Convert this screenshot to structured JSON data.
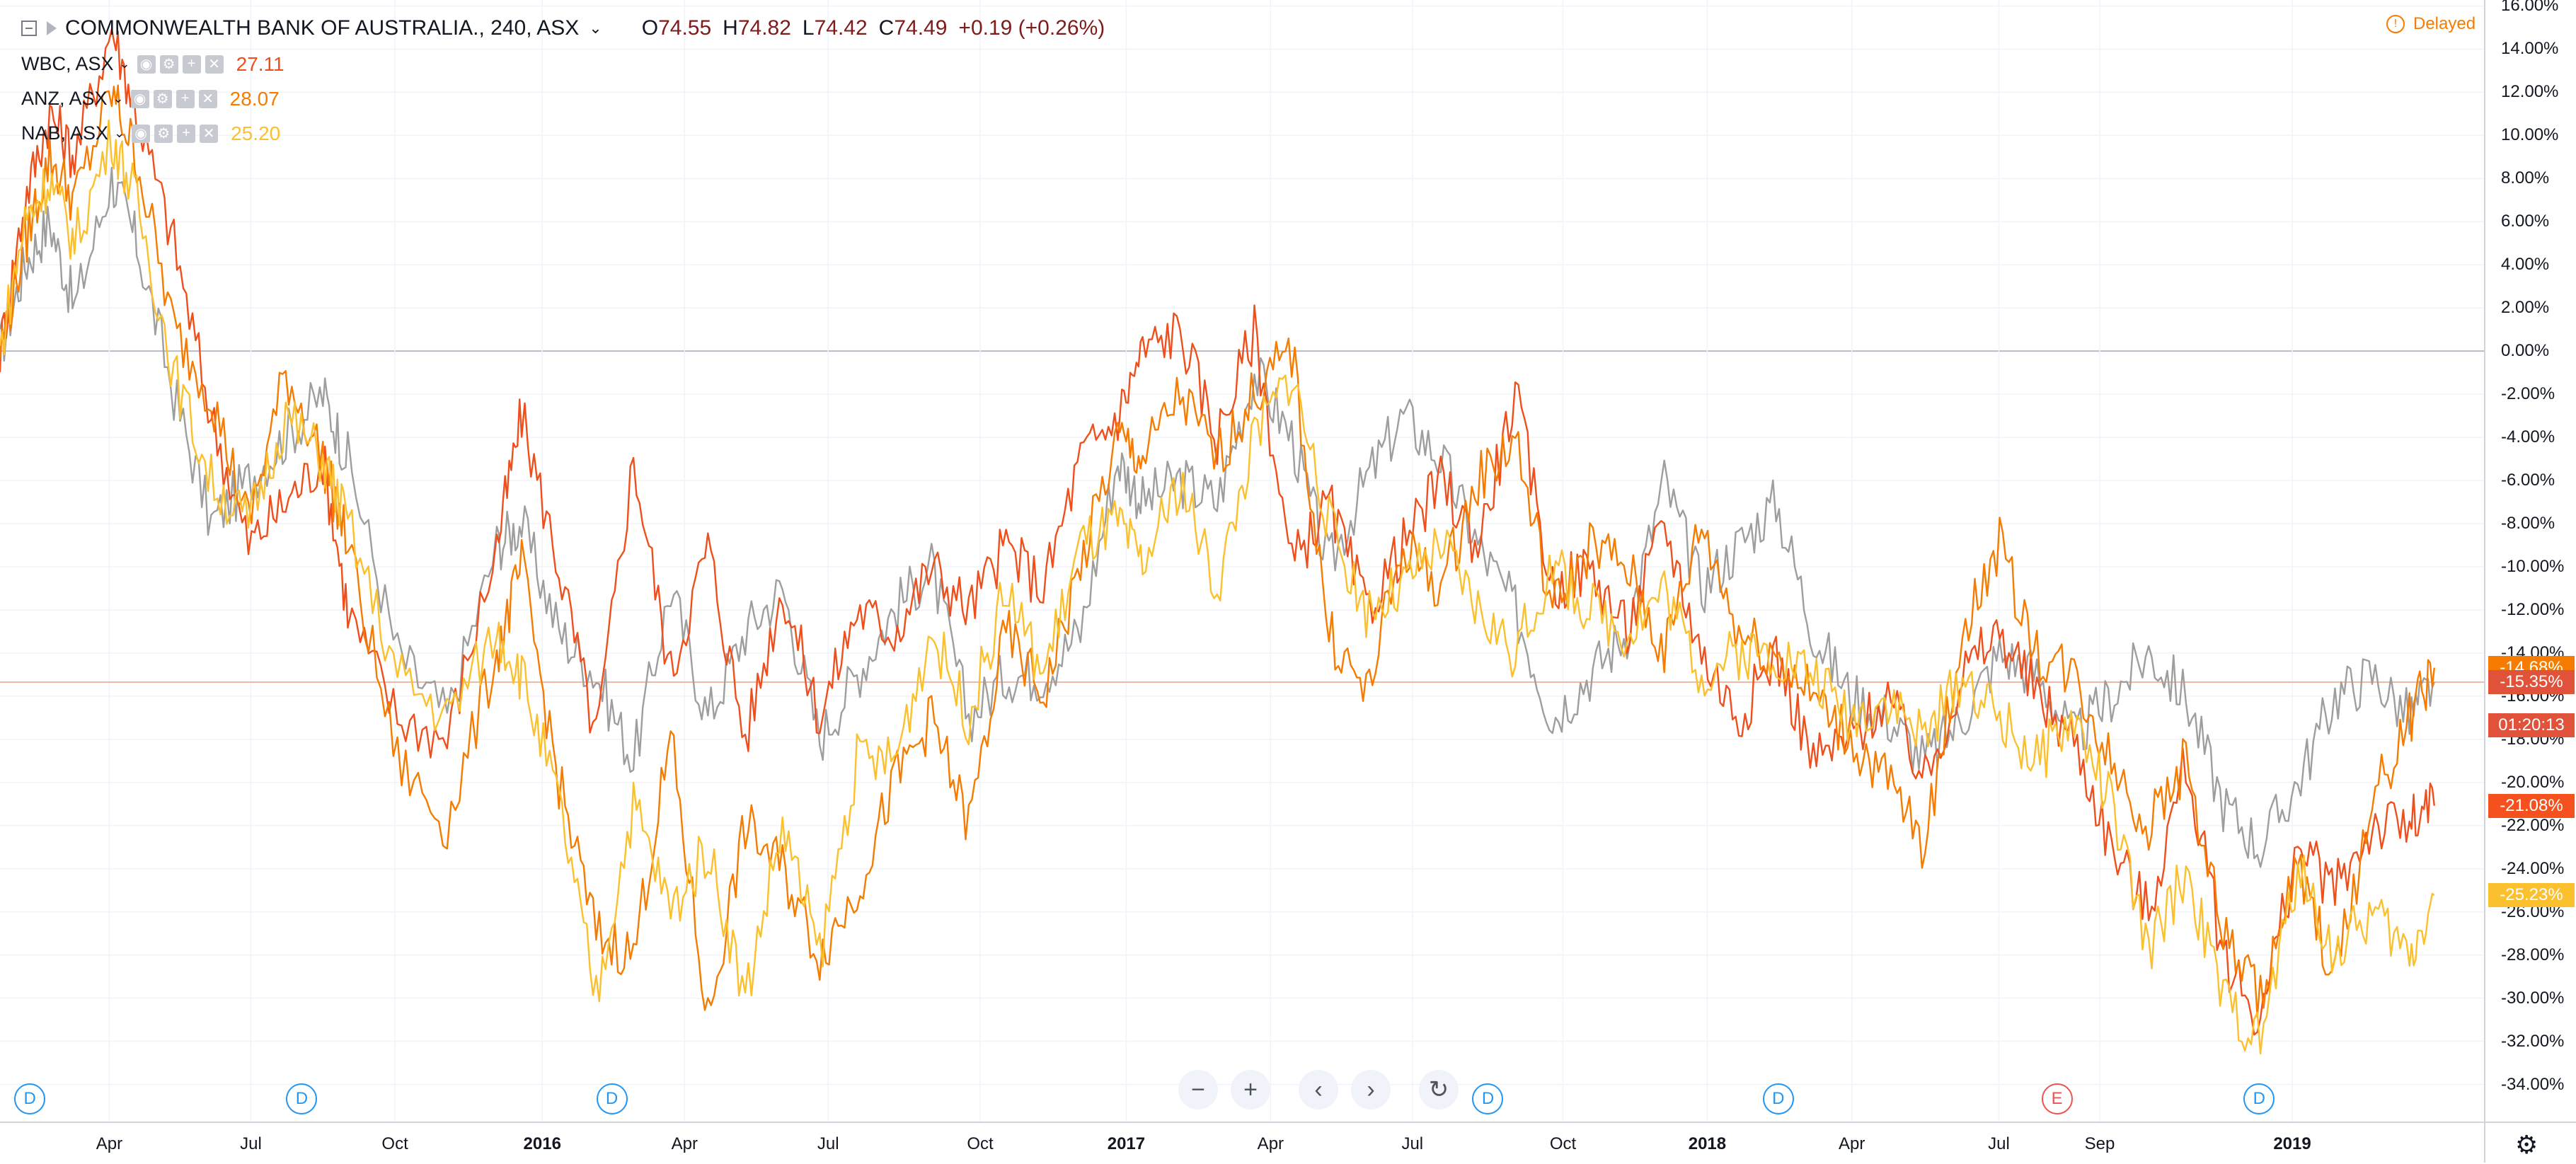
{
  "header": {
    "symbol": "COMMONWEALTH BANK OF AUSTRALIA., 240, ASX",
    "open": "74.55",
    "high": "74.82",
    "low": "74.42",
    "close": "74.49",
    "change": "+0.19 (+0.26%)",
    "o_lbl": "O",
    "h_lbl": "H",
    "l_lbl": "L",
    "c_lbl": "C",
    "delayed": "Delayed"
  },
  "compare": [
    {
      "name": "WBC, ASX",
      "value": "27.11",
      "color": "#ef4f1c"
    },
    {
      "name": "ANZ, ASX",
      "value": "28.07",
      "color": "#f57c00"
    },
    {
      "name": "NAB, ASX",
      "value": "25.20",
      "color": "#fbc02d"
    }
  ],
  "icons": {
    "eye": "eye-icon",
    "gear": "gear-icon",
    "plus": "plus-icon",
    "close": "close-icon"
  },
  "price_labels": [
    {
      "text": "-14.68%",
      "value": -14.68,
      "color": "#f57c00"
    },
    {
      "text": "-15.35%",
      "value": -15.35,
      "color": "#e0523a"
    },
    {
      "text": "01:20:13",
      "value": -17.35,
      "color": "#e0523a"
    },
    {
      "text": "-21.08%",
      "value": -21.08,
      "color": "#f4511e"
    },
    {
      "text": "-25.23%",
      "value": -25.23,
      "color": "#fbc02d"
    }
  ],
  "markers": [
    {
      "label": "D",
      "x": 0.012
    },
    {
      "label": "D",
      "x": 0.1215
    },
    {
      "label": "D",
      "x": 0.2463
    },
    {
      "label": "D",
      "x": 0.599
    },
    {
      "label": "D",
      "x": 0.7159
    },
    {
      "label": "E",
      "x": 0.8281
    },
    {
      "label": "D",
      "x": 0.9095
    }
  ],
  "nav": {
    "zoom_out": "−",
    "zoom_in": "+",
    "left": "‹",
    "right": "›",
    "reset": "↻"
  },
  "chart_data": {
    "type": "line",
    "title": "COMMONWEALTH BANK OF AUSTRALIA., 240, ASX",
    "xlabel": "",
    "ylabel": "",
    "ylim": [
      -35,
      17
    ],
    "yticks": [
      "16.00%",
      "14.00%",
      "12.00%",
      "10.00%",
      "8.00%",
      "6.00%",
      "4.00%",
      "2.00%",
      "0.00%",
      "-2.00%",
      "-4.00%",
      "-6.00%",
      "-8.00%",
      "-10.00%",
      "-12.00%",
      "-14.00%",
      "-16.00%",
      "-18.00%",
      "-20.00%",
      "-22.00%",
      "-24.00%",
      "-26.00%",
      "-28.00%",
      "-30.00%",
      "-32.00%",
      "-34.00%"
    ],
    "x_range": [
      "2015-02",
      "2019-03"
    ],
    "xticks": [
      {
        "label": "Apr",
        "x": 0.044,
        "major": false
      },
      {
        "label": "Jul",
        "x": 0.101,
        "major": false
      },
      {
        "label": "Oct",
        "x": 0.159,
        "major": false
      },
      {
        "label": "2016",
        "x": 0.2183,
        "major": true
      },
      {
        "label": "Apr",
        "x": 0.2756,
        "major": false
      },
      {
        "label": "Jul",
        "x": 0.3334,
        "major": false
      },
      {
        "label": "Oct",
        "x": 0.3946,
        "major": false
      },
      {
        "label": "2017",
        "x": 0.4534,
        "major": true
      },
      {
        "label": "Apr",
        "x": 0.5115,
        "major": false
      },
      {
        "label": "Jul",
        "x": 0.5686,
        "major": false
      },
      {
        "label": "Oct",
        "x": 0.6292,
        "major": false
      },
      {
        "label": "2018",
        "x": 0.6873,
        "major": true
      },
      {
        "label": "Apr",
        "x": 0.7455,
        "major": false
      },
      {
        "label": "Jul",
        "x": 0.8047,
        "major": false
      },
      {
        "label": "Sep",
        "x": 0.8453,
        "major": false
      },
      {
        "label": "2019",
        "x": 0.9228,
        "major": true
      }
    ],
    "series": [
      {
        "name": "COMMONWEALTH BANK OF AUSTRALIA.",
        "color": "#9e9e9e",
        "x": [
          0,
          0.01,
          0.02,
          0.03,
          0.045,
          0.055,
          0.07,
          0.085,
          0.1,
          0.115,
          0.13,
          0.14,
          0.16,
          0.18,
          0.2,
          0.21,
          0.225,
          0.24,
          0.255,
          0.27,
          0.285,
          0.3,
          0.315,
          0.33,
          0.345,
          0.36,
          0.375,
          0.39,
          0.405,
          0.42,
          0.435,
          0.45,
          0.46,
          0.475,
          0.49,
          0.505,
          0.52,
          0.535,
          0.55,
          0.565,
          0.58,
          0.595,
          0.61,
          0.625,
          0.64,
          0.655,
          0.67,
          0.685,
          0.7,
          0.715,
          0.73,
          0.745,
          0.76,
          0.775,
          0.79,
          0.805,
          0.82,
          0.835,
          0.85,
          0.865,
          0.88,
          0.895,
          0.91,
          0.925,
          0.94,
          0.955,
          0.97,
          0.98
        ],
        "y": [
          0,
          4,
          6,
          2,
          8,
          5,
          -2,
          -8,
          -6,
          -4,
          -2,
          -5,
          -14,
          -17,
          -9,
          -8,
          -13,
          -15,
          -19,
          -11,
          -17,
          -13,
          -11,
          -18,
          -15,
          -12,
          -10,
          -17,
          -15,
          -15,
          -13,
          -5,
          -7,
          -6,
          -7,
          -1,
          -4,
          -10,
          -6,
          -3,
          -5,
          -9,
          -12,
          -17,
          -15,
          -13,
          -6,
          -11,
          -9,
          -7,
          -13,
          -16,
          -17,
          -19,
          -17,
          -14,
          -15,
          -18,
          -16,
          -14,
          -16,
          -21,
          -23,
          -20,
          -16,
          -15,
          -17,
          -15.35
        ]
      },
      {
        "name": "WBC, ASX",
        "color": "#ef4f1c",
        "x": [
          0,
          0.01,
          0.02,
          0.03,
          0.045,
          0.055,
          0.07,
          0.085,
          0.1,
          0.115,
          0.13,
          0.14,
          0.16,
          0.18,
          0.2,
          0.21,
          0.225,
          0.24,
          0.255,
          0.27,
          0.285,
          0.3,
          0.315,
          0.33,
          0.345,
          0.36,
          0.375,
          0.39,
          0.405,
          0.42,
          0.435,
          0.45,
          0.46,
          0.475,
          0.49,
          0.505,
          0.52,
          0.535,
          0.55,
          0.565,
          0.58,
          0.595,
          0.61,
          0.625,
          0.64,
          0.655,
          0.67,
          0.685,
          0.7,
          0.715,
          0.73,
          0.745,
          0.76,
          0.775,
          0.79,
          0.805,
          0.82,
          0.835,
          0.85,
          0.865,
          0.88,
          0.895,
          0.91,
          0.925,
          0.94,
          0.955,
          0.97,
          0.98
        ],
        "y": [
          0,
          7,
          11,
          9,
          15,
          11,
          5,
          -3,
          -9,
          -7,
          -5,
          -12,
          -17,
          -18,
          -9,
          -3,
          -10,
          -18,
          -5,
          -15,
          -9,
          -18,
          -11,
          -17,
          -12,
          -13,
          -10,
          -12,
          -9,
          -11,
          -5,
          -3,
          0,
          1,
          -4,
          1,
          -10,
          -7,
          -12,
          -9,
          -6,
          -9,
          -2,
          -11,
          -10,
          -13,
          -8,
          -14,
          -17,
          -14,
          -19,
          -18,
          -16,
          -20,
          -15,
          -13,
          -16,
          -18,
          -23,
          -26,
          -19,
          -28,
          -31,
          -23,
          -25,
          -22,
          -22,
          -21.08
        ]
      },
      {
        "name": "ANZ, ASX",
        "color": "#f57c00",
        "x": [
          0,
          0.01,
          0.02,
          0.03,
          0.045,
          0.055,
          0.07,
          0.085,
          0.1,
          0.115,
          0.13,
          0.14,
          0.16,
          0.18,
          0.2,
          0.21,
          0.225,
          0.24,
          0.255,
          0.27,
          0.285,
          0.3,
          0.315,
          0.33,
          0.345,
          0.36,
          0.375,
          0.39,
          0.405,
          0.42,
          0.435,
          0.45,
          0.46,
          0.475,
          0.49,
          0.505,
          0.52,
          0.535,
          0.55,
          0.565,
          0.58,
          0.595,
          0.61,
          0.625,
          0.64,
          0.655,
          0.67,
          0.685,
          0.7,
          0.715,
          0.73,
          0.745,
          0.76,
          0.775,
          0.79,
          0.805,
          0.82,
          0.835,
          0.85,
          0.865,
          0.88,
          0.895,
          0.91,
          0.925,
          0.94,
          0.955,
          0.97,
          0.98
        ],
        "y": [
          0,
          5,
          9,
          7,
          12,
          9,
          1,
          -2,
          -8,
          -1,
          -5,
          -9,
          -19,
          -22,
          -14,
          -10,
          -20,
          -27,
          -28,
          -18,
          -31,
          -22,
          -24,
          -28,
          -25,
          -20,
          -17,
          -22,
          -13,
          -16,
          -10,
          -4,
          -5,
          -2,
          -5,
          -2,
          0,
          -13,
          -16,
          -9,
          -11,
          -6,
          -4,
          -12,
          -9,
          -10,
          -14,
          -8,
          -13,
          -14,
          -16,
          -18,
          -20,
          -23,
          -13,
          -9,
          -14,
          -15,
          -19,
          -22,
          -19,
          -27,
          -30,
          -24,
          -29,
          -21,
          -17,
          -14.68
        ]
      },
      {
        "name": "NAB, ASX",
        "color": "#fbc02d",
        "x": [
          0,
          0.01,
          0.02,
          0.03,
          0.045,
          0.055,
          0.07,
          0.085,
          0.1,
          0.115,
          0.13,
          0.14,
          0.16,
          0.18,
          0.2,
          0.21,
          0.225,
          0.24,
          0.255,
          0.27,
          0.285,
          0.3,
          0.315,
          0.33,
          0.345,
          0.36,
          0.375,
          0.39,
          0.405,
          0.42,
          0.435,
          0.45,
          0.46,
          0.475,
          0.49,
          0.505,
          0.52,
          0.535,
          0.55,
          0.565,
          0.58,
          0.595,
          0.61,
          0.625,
          0.64,
          0.655,
          0.67,
          0.685,
          0.7,
          0.715,
          0.73,
          0.745,
          0.76,
          0.775,
          0.79,
          0.805,
          0.82,
          0.835,
          0.85,
          0.865,
          0.88,
          0.895,
          0.91,
          0.925,
          0.94,
          0.955,
          0.97,
          0.98
        ],
        "y": [
          0,
          6,
          8,
          5,
          10,
          7,
          -1,
          -6,
          -8,
          -3,
          -5,
          -8,
          -15,
          -17,
          -13,
          -15,
          -21,
          -30,
          -21,
          -26,
          -23,
          -30,
          -22,
          -28,
          -19,
          -19,
          -13,
          -17,
          -11,
          -15,
          -9,
          -8,
          -10,
          -6,
          -11,
          -4,
          -1,
          -8,
          -12,
          -11,
          -9,
          -12,
          -14,
          -10,
          -12,
          -13,
          -11,
          -15,
          -14,
          -14,
          -15,
          -17,
          -16,
          -18,
          -15,
          -17,
          -19,
          -17,
          -21,
          -28,
          -24,
          -30,
          -32,
          -24,
          -28,
          -26,
          -28,
          -25.23
        ]
      }
    ]
  }
}
